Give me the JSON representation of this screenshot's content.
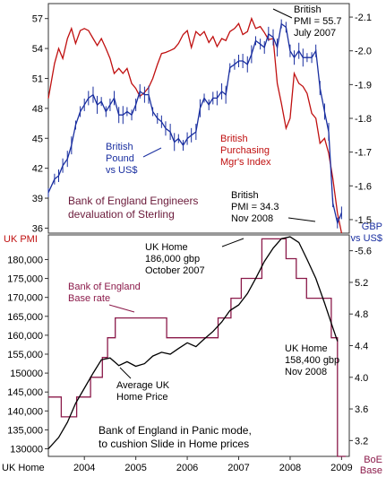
{
  "chart_data": [
    {
      "type": "line",
      "panel": "top",
      "left_axis": {
        "ticks": [
          "57",
          "54",
          "51",
          "48",
          "45",
          "42",
          "39",
          "36"
        ],
        "ylim": [
          35.5,
          58.5
        ]
      },
      "right_axis": {
        "ticks": [
          "-2.1",
          "-2.0",
          "-1.9",
          "-1.8",
          "-1.7",
          "-1.6",
          "-1.5"
        ],
        "ylim": [
          1.46,
          2.14
        ]
      },
      "axis_corner_labels": {
        "left": "UK PMI",
        "right_line1": "GBP",
        "right_line2": "vs US$"
      },
      "series": [
        {
          "name": "British Purchasing Mgr's Index",
          "axis": "left",
          "color": "#c01010",
          "x": [
            2003.3,
            2003.42,
            2003.5,
            2003.58,
            2003.67,
            2003.75,
            2003.83,
            2003.92,
            2004.0,
            2004.08,
            2004.17,
            2004.25,
            2004.33,
            2004.42,
            2004.5,
            2004.58,
            2004.67,
            2004.75,
            2004.83,
            2004.92,
            2005.0,
            2005.08,
            2005.17,
            2005.25,
            2005.33,
            2005.42,
            2005.5,
            2005.58,
            2005.67,
            2005.75,
            2005.83,
            2005.92,
            2006.0,
            2006.08,
            2006.17,
            2006.25,
            2006.33,
            2006.42,
            2006.5,
            2006.58,
            2006.67,
            2006.75,
            2006.83,
            2006.92,
            2007.0,
            2007.08,
            2007.17,
            2007.25,
            2007.33,
            2007.42,
            2007.5,
            2007.58,
            2007.67,
            2007.75,
            2007.83,
            2007.92,
            2008.0,
            2008.08,
            2008.17,
            2008.25,
            2008.33,
            2008.42,
            2008.5,
            2008.58,
            2008.67,
            2008.75,
            2008.83,
            2008.92,
            2009.0
          ],
          "y": [
            49.0,
            52.5,
            54.0,
            53.0,
            55.0,
            56.0,
            54.5,
            55.8,
            56.0,
            55.8,
            55.0,
            54.3,
            55.0,
            54.0,
            53.0,
            51.5,
            52.0,
            51.5,
            52.0,
            50.5,
            50.0,
            49.2,
            49.6,
            50.1,
            51.0,
            52.4,
            53.5,
            53.6,
            53.8,
            54.0,
            54.5,
            55.4,
            55.8,
            54.1,
            55.7,
            55.3,
            55.7,
            54.6,
            55.2,
            54.2,
            55.0,
            54.8,
            55.7,
            56.0,
            56.5,
            55.4,
            55.7,
            57.0,
            56.0,
            56.2,
            55.6,
            54.9,
            55.0,
            50.5,
            48.5,
            46.0,
            47.0,
            51.5,
            50.5,
            50.2,
            49.5,
            47.5,
            47.0,
            44.5,
            45.0,
            43.5,
            41.0,
            37.5,
            34.9
          ]
        },
        {
          "name": "British Pound vs US$",
          "axis": "right",
          "color": "#1a2fa0",
          "x": [
            2003.3,
            2003.42,
            2003.5,
            2003.58,
            2003.67,
            2003.75,
            2003.83,
            2003.92,
            2004.0,
            2004.08,
            2004.17,
            2004.25,
            2004.33,
            2004.42,
            2004.5,
            2004.58,
            2004.67,
            2004.75,
            2004.83,
            2004.92,
            2005.0,
            2005.08,
            2005.17,
            2005.25,
            2005.33,
            2005.42,
            2005.5,
            2005.58,
            2005.67,
            2005.75,
            2005.83,
            2005.92,
            2006.0,
            2006.08,
            2006.17,
            2006.25,
            2006.33,
            2006.42,
            2006.5,
            2006.58,
            2006.67,
            2006.75,
            2006.83,
            2006.92,
            2007.0,
            2007.08,
            2007.17,
            2007.25,
            2007.33,
            2007.42,
            2007.5,
            2007.58,
            2007.67,
            2007.75,
            2007.83,
            2007.92,
            2008.0,
            2008.08,
            2008.17,
            2008.25,
            2008.33,
            2008.42,
            2008.5,
            2008.58,
            2008.67,
            2008.75,
            2008.83,
            2008.92,
            2009.0
          ],
          "y": [
            1.58,
            1.62,
            1.63,
            1.66,
            1.68,
            1.72,
            1.78,
            1.82,
            1.84,
            1.86,
            1.87,
            1.84,
            1.85,
            1.82,
            1.84,
            1.86,
            1.81,
            1.81,
            1.82,
            1.81,
            1.84,
            1.88,
            1.87,
            1.87,
            1.82,
            1.8,
            1.79,
            1.77,
            1.76,
            1.73,
            1.74,
            1.72,
            1.74,
            1.75,
            1.76,
            1.83,
            1.86,
            1.84,
            1.86,
            1.86,
            1.88,
            1.87,
            1.95,
            1.96,
            1.97,
            1.97,
            1.96,
            1.99,
            2.03,
            2.02,
            2.01,
            2.05,
            2.04,
            2.01,
            2.08,
            2.07,
            2.0,
            1.98,
            2.0,
            1.98,
            1.98,
            1.98,
            2.0,
            1.89,
            1.82,
            1.76,
            1.55,
            1.49,
            1.52
          ]
        }
      ],
      "annotations": [
        {
          "id": "pmi-high",
          "lines": [
            "British",
            "PMI = 55.7",
            "July 2007"
          ]
        },
        {
          "id": "pmi-low",
          "lines": [
            "British",
            "PMI = 34.3",
            "Nov 2008"
          ]
        },
        {
          "id": "pound-label",
          "lines": [
            "British",
            "Pound",
            "vs US$"
          ]
        },
        {
          "id": "pmi-label",
          "lines": [
            "British",
            "Purchasing",
            "Mgr's Index"
          ]
        },
        {
          "id": "top-title",
          "lines": [
            "Bank of England Engineers",
            "devaluation of Sterling"
          ]
        }
      ]
    },
    {
      "type": "line",
      "panel": "bottom",
      "left_axis": {
        "ticks": [
          "180,000",
          "175,000",
          "170,000",
          "165,000",
          "160,000",
          "155,000",
          "150000",
          "145,000",
          "140,000",
          "135,000",
          "130000"
        ],
        "ylim": [
          128000,
          186500
        ]
      },
      "right_axis": {
        "ticks": [
          "-5.6",
          "5.2",
          "4.8",
          "4.4",
          "4.0",
          "3.6",
          "3.2"
        ],
        "ylim": [
          3.0,
          5.8
        ]
      },
      "axis_corner_labels": {
        "left": "UK Home",
        "right_line1": "BoE",
        "right_line2": "Base"
      },
      "x_ticks": [
        "2004",
        "2005",
        "2006",
        "2007",
        "2008",
        "2009"
      ],
      "xlim": [
        2003.3,
        2009.15
      ],
      "series": [
        {
          "name": "Bank of England Base rate",
          "axis": "right",
          "color": "#8b1a4a",
          "x": [
            2003.3,
            2003.55,
            2003.55,
            2003.85,
            2003.85,
            2004.12,
            2004.12,
            2004.35,
            2004.35,
            2004.45,
            2004.45,
            2004.6,
            2004.6,
            2005.6,
            2005.6,
            2006.6,
            2006.6,
            2006.85,
            2006.85,
            2007.05,
            2007.05,
            2007.45,
            2007.45,
            2007.92,
            2007.92,
            2008.12,
            2008.12,
            2008.32,
            2008.32,
            2008.8,
            2008.8,
            2008.92,
            2008.92,
            2009.0,
            2009.0,
            2009.08
          ],
          "y": [
            3.75,
            3.75,
            3.5,
            3.5,
            3.75,
            3.75,
            4.0,
            4.0,
            4.25,
            4.25,
            4.5,
            4.5,
            4.75,
            4.75,
            4.5,
            4.5,
            4.75,
            4.75,
            5.0,
            5.0,
            5.25,
            5.25,
            5.75,
            5.75,
            5.5,
            5.5,
            5.25,
            5.25,
            5.0,
            5.0,
            4.5,
            4.5,
            3.0,
            3.0,
            2.0,
            2.0
          ]
        },
        {
          "name": "Average UK Home Price",
          "axis": "left",
          "color": "#000000",
          "x": [
            2003.3,
            2003.5,
            2003.67,
            2003.83,
            2004.0,
            2004.17,
            2004.33,
            2004.5,
            2004.67,
            2004.83,
            2005.0,
            2005.17,
            2005.33,
            2005.5,
            2005.67,
            2005.83,
            2006.0,
            2006.17,
            2006.33,
            2006.5,
            2006.67,
            2006.83,
            2007.0,
            2007.17,
            2007.33,
            2007.5,
            2007.67,
            2007.83,
            2008.0,
            2008.17,
            2008.33,
            2008.5,
            2008.67,
            2008.83,
            2008.92
          ],
          "y": [
            130000,
            133000,
            137000,
            142000,
            146000,
            150000,
            153500,
            154000,
            152000,
            153000,
            151800,
            152500,
            154500,
            155500,
            155000,
            156500,
            158000,
            157000,
            159000,
            161000,
            163500,
            166500,
            168000,
            171000,
            175000,
            179500,
            183000,
            185500,
            186000,
            184500,
            180000,
            175000,
            168500,
            162000,
            158400
          ]
        }
      ],
      "annotations": [
        {
          "id": "home-high",
          "lines": [
            "UK Home",
            "186,000 gbp",
            "October 2007"
          ]
        },
        {
          "id": "home-low",
          "lines": [
            "UK Home",
            "158,400 gbp",
            "Nov 2008"
          ]
        },
        {
          "id": "base-rate-label",
          "lines": [
            "Bank of England",
            "Base rate"
          ]
        },
        {
          "id": "home-price-label",
          "lines": [
            "Average UK",
            "Home Price"
          ]
        },
        {
          "id": "bottom-title",
          "lines": [
            "Bank of England in Panic mode,",
            "to cushion Slide in Home prices"
          ]
        }
      ]
    }
  ]
}
